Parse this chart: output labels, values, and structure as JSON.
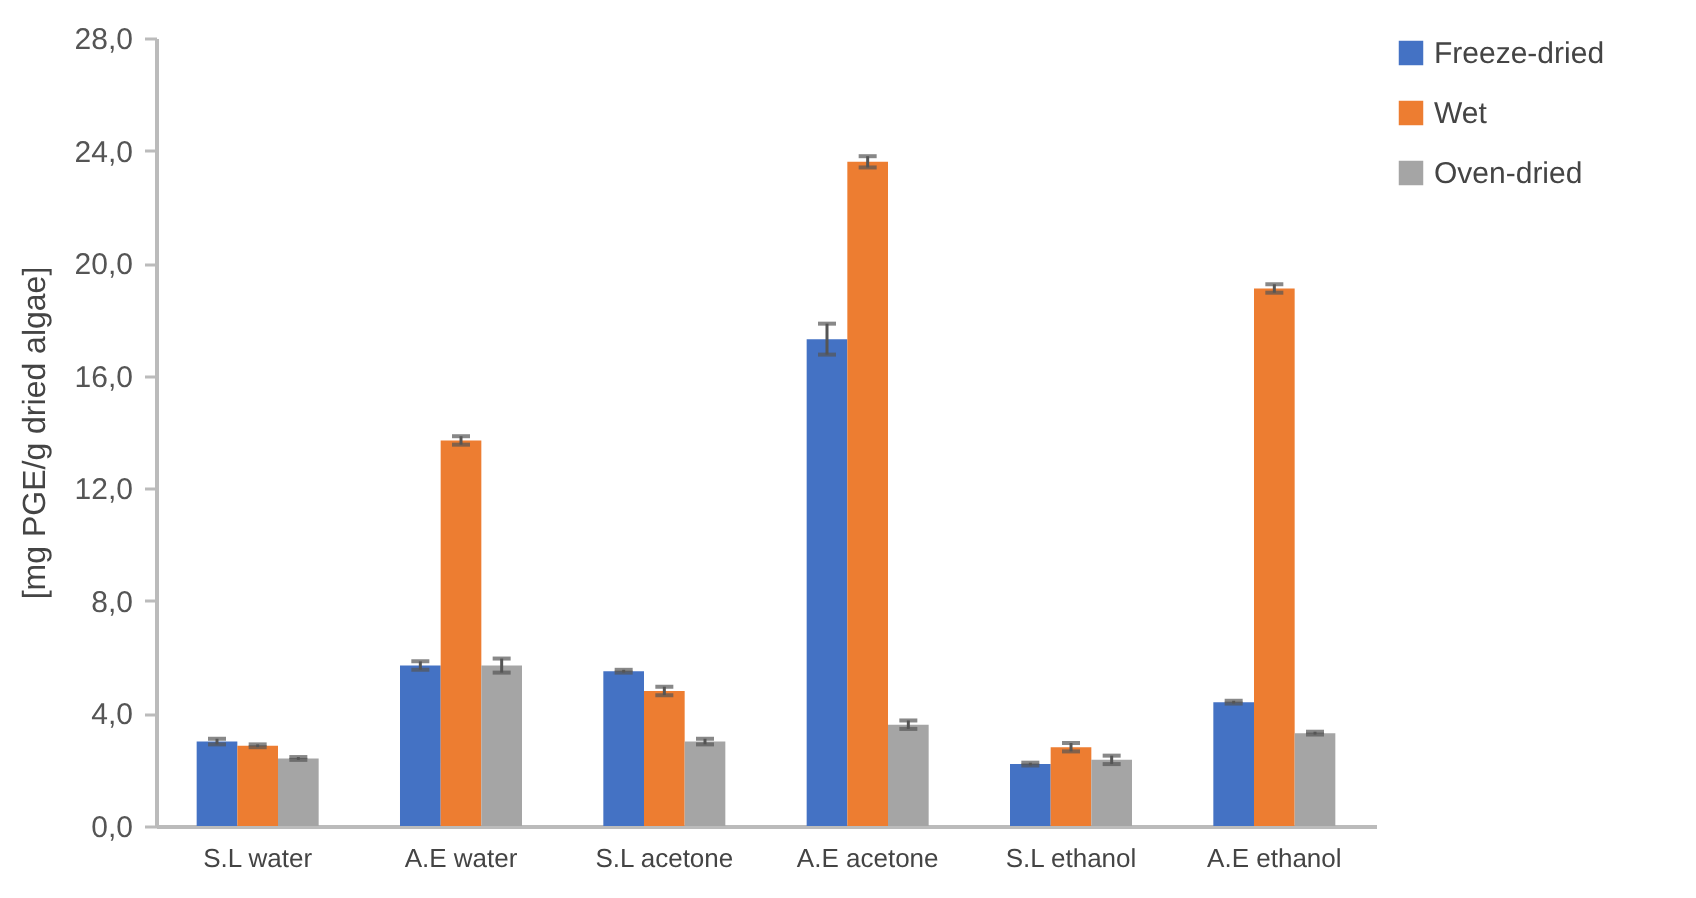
{
  "chart_data": {
    "type": "bar",
    "ylabel": "[mg PGE/g dried algae]",
    "categories": [
      "S.L water",
      "A.E water",
      "S.L acetone",
      "A.E acetone",
      "S.L ethanol",
      "A.E ethanol"
    ],
    "series": [
      {
        "name": "Freeze-dried",
        "color": "#4472c4",
        "values": [
          3.0,
          5.7,
          5.5,
          17.3,
          2.2,
          4.4
        ],
        "errors": [
          0.1,
          0.15,
          0.05,
          0.55,
          0.05,
          0.05
        ]
      },
      {
        "name": "Wet",
        "color": "#ed7d31",
        "values": [
          2.85,
          13.7,
          4.8,
          23.6,
          2.8,
          19.1
        ],
        "errors": [
          0.05,
          0.15,
          0.15,
          0.2,
          0.15,
          0.15
        ]
      },
      {
        "name": "Oven-dried",
        "color": "#a5a5a5",
        "values": [
          2.4,
          5.7,
          3.0,
          3.6,
          2.35,
          3.3
        ],
        "errors": [
          0.05,
          0.25,
          0.1,
          0.15,
          0.15,
          0.05
        ]
      }
    ],
    "ylim": [
      0,
      28
    ],
    "yticks": [
      {
        "value": 0,
        "label": "0,0"
      },
      {
        "value": 4,
        "label": "4,0"
      },
      {
        "value": 8,
        "label": "8,0"
      },
      {
        "value": 12,
        "label": "12,0"
      },
      {
        "value": 16,
        "label": "16,0"
      },
      {
        "value": 20,
        "label": "20,0"
      },
      {
        "value": 24,
        "label": "24,0"
      },
      {
        "value": 28,
        "label": "28,0"
      }
    ],
    "grid": false,
    "legend": "right"
  }
}
